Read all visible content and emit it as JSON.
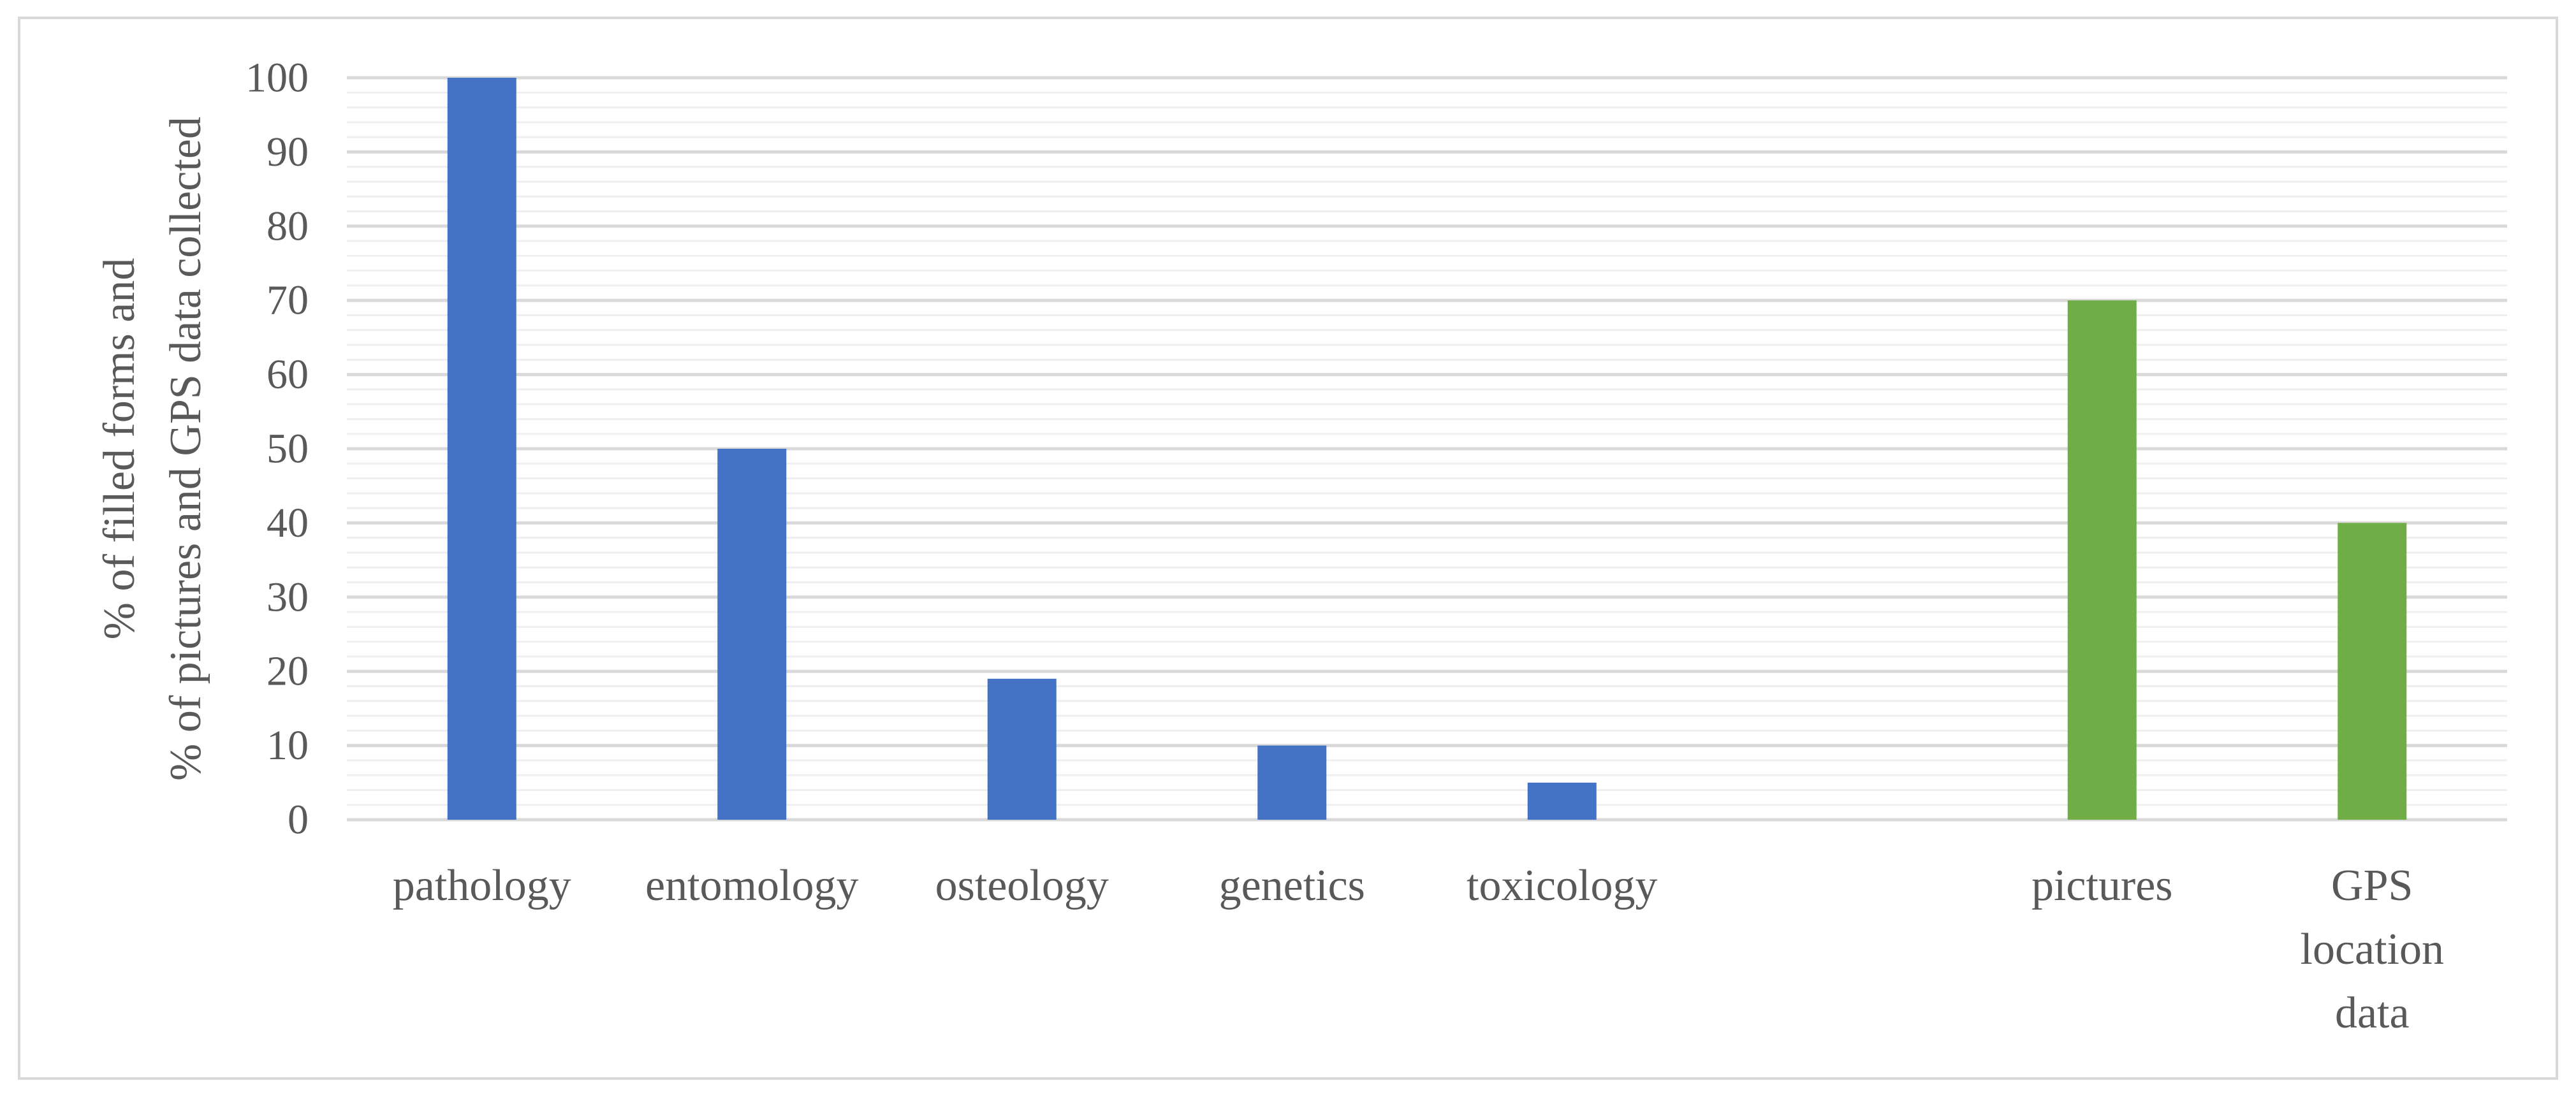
{
  "chart_data": {
    "type": "bar",
    "categories": [
      "pathology",
      "entomology",
      "osteology",
      "genetics",
      "toxicology",
      "",
      "pictures",
      "GPS location data"
    ],
    "category_label_lines": [
      [
        "pathology"
      ],
      [
        "entomology"
      ],
      [
        "osteology"
      ],
      [
        "genetics"
      ],
      [
        "toxicology"
      ],
      [
        ""
      ],
      [
        "pictures"
      ],
      [
        "GPS",
        "location",
        "data"
      ]
    ],
    "values": [
      100,
      50,
      19,
      10,
      5,
      null,
      70,
      40
    ],
    "bar_colors": [
      "#4472C4",
      "#4472C4",
      "#4472C4",
      "#4472C4",
      "#4472C4",
      null,
      "#70AD47",
      "#70AD47"
    ],
    "title": "",
    "xlabel": "",
    "ylabel_lines": [
      "% of filled forms and",
      "% of pictures and GPS data collected"
    ],
    "ylim": [
      0,
      100
    ],
    "yticks": [
      0,
      10,
      20,
      30,
      40,
      50,
      60,
      70,
      80,
      90,
      100
    ],
    "grid": true,
    "minor_grid": true,
    "legend": "none"
  },
  "colors": {
    "blue_bars": "#4472C4",
    "green_bars": "#70AD47",
    "major_grid": "#d9d9d9",
    "minor_grid": "#efefef",
    "text": "#595959",
    "frame": "#d9d9d9"
  }
}
